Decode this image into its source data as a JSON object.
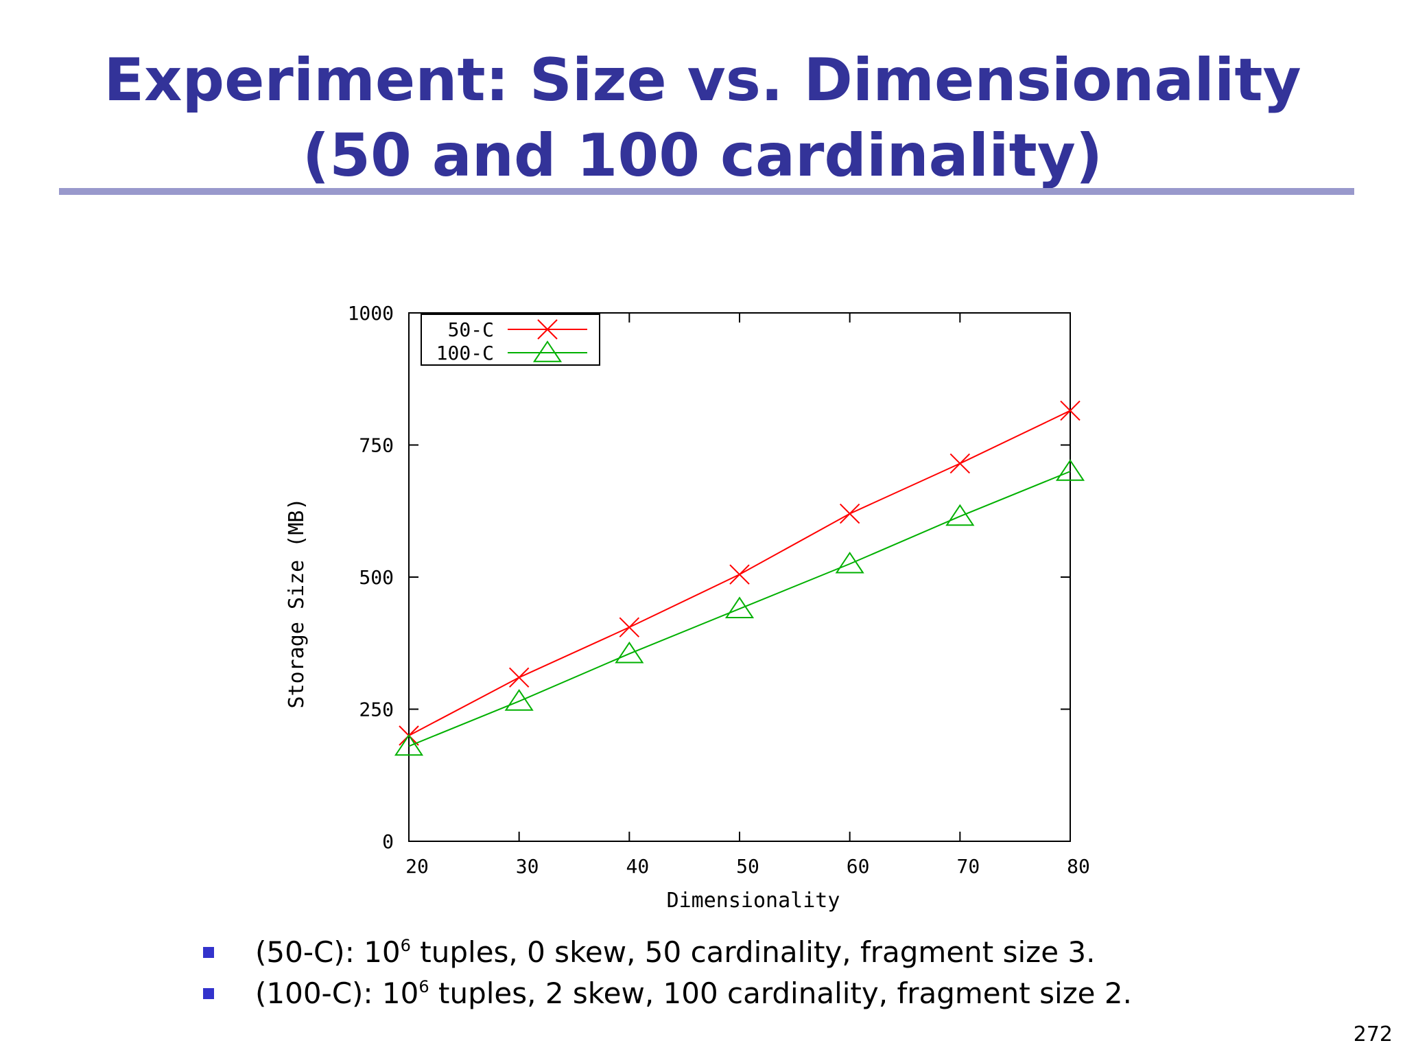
{
  "slide": {
    "title": "Experiment: Size vs. Dimensionality (50 and 100 cardinality)",
    "page_number": "272"
  },
  "bullets": [
    {
      "prefix": "(50-C): 10",
      "sup": "6",
      "suffix": " tuples, 0 skew, 50 cardinality, fragment size 3."
    },
    {
      "prefix": "(100-C): 10",
      "sup": "6",
      "suffix": " tuples, 2 skew, 100 cardinality, fragment size 2."
    }
  ],
  "colors": {
    "title": "#333399",
    "rule": "#9999cc",
    "bullet": "#3333cc",
    "series_50c": "#ff0000",
    "series_100c": "#00b000"
  },
  "chart_data": {
    "type": "line",
    "title": "",
    "xlabel": "Dimensionality",
    "ylabel": "Storage Size (MB)",
    "x": [
      20,
      30,
      40,
      50,
      60,
      70,
      80
    ],
    "xlim": [
      20,
      80
    ],
    "ylim": [
      0,
      1000
    ],
    "x_ticks": [
      20,
      30,
      40,
      50,
      60,
      70,
      80
    ],
    "y_ticks": [
      0,
      250,
      500,
      750,
      1000
    ],
    "grid": false,
    "legend_position": "top-left",
    "series": [
      {
        "name": "50-C",
        "marker": "x",
        "values": [
          200,
          310,
          405,
          505,
          620,
          715,
          815
        ]
      },
      {
        "name": "100-C",
        "marker": "triangle",
        "values": [
          180,
          265,
          355,
          440,
          525,
          615,
          700
        ]
      }
    ]
  }
}
